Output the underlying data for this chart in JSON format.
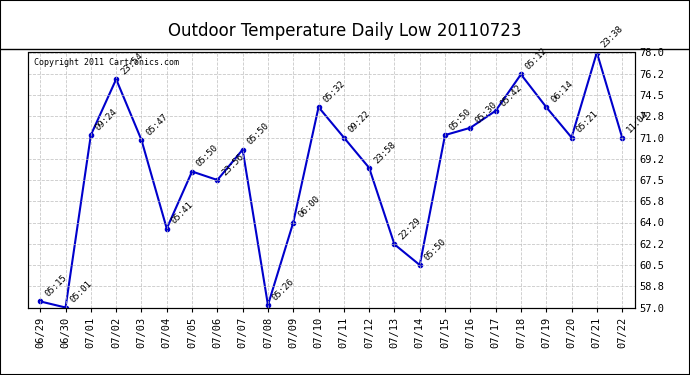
{
  "title": "Outdoor Temperature Daily Low 20110723",
  "copyright": "Copyright 2011 Cartronics.com",
  "dates": [
    "06/29",
    "06/30",
    "07/01",
    "07/02",
    "07/03",
    "07/04",
    "07/05",
    "07/06",
    "07/07",
    "07/08",
    "07/09",
    "07/10",
    "07/11",
    "07/12",
    "07/13",
    "07/14",
    "07/15",
    "07/16",
    "07/17",
    "07/18",
    "07/19",
    "07/20",
    "07/21",
    "07/22"
  ],
  "values": [
    57.5,
    57.0,
    71.2,
    75.8,
    70.8,
    63.5,
    68.2,
    67.5,
    70.0,
    57.2,
    64.0,
    73.5,
    71.0,
    68.5,
    62.2,
    60.5,
    71.2,
    71.8,
    73.2,
    76.2,
    73.5,
    71.0,
    78.0,
    71.0
  ],
  "labels": [
    "05:15",
    "05:01",
    "09:24",
    "23:54",
    "05:47",
    "05:41",
    "05:50",
    "23:56",
    "05:50",
    "05:26",
    "06:00",
    "05:32",
    "09:22",
    "23:58",
    "22:29",
    "05:50",
    "05:50",
    "05:30",
    "05:42",
    "05:12",
    "06:14",
    "05:21",
    "23:38",
    "11:04"
  ],
  "ylim": [
    57.0,
    78.0
  ],
  "yticks": [
    57.0,
    58.8,
    60.5,
    62.2,
    64.0,
    65.8,
    67.5,
    69.2,
    71.0,
    72.8,
    74.5,
    76.2,
    78.0
  ],
  "line_color": "#0000cc",
  "marker_color": "#0000cc",
  "background_color": "#ffffff",
  "grid_color": "#bbbbbb",
  "title_fontsize": 12,
  "label_fontsize": 6.5,
  "tick_fontsize": 7.5,
  "copyright_fontsize": 6
}
